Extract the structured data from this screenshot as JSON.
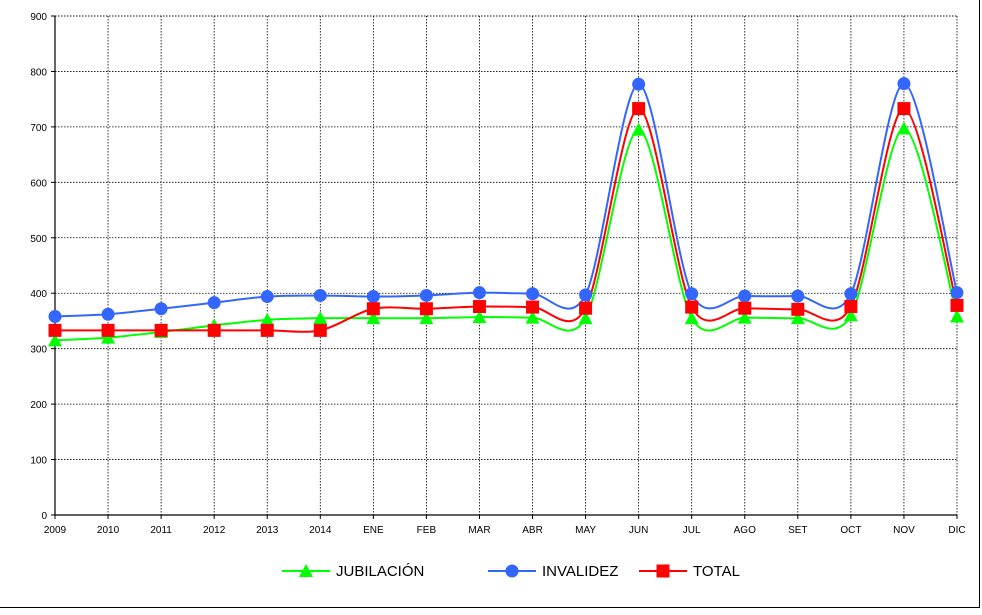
{
  "chart_data": {
    "type": "line",
    "title": "",
    "xlabel": "",
    "ylabel": "",
    "categories": [
      "2009",
      "2010",
      "2011",
      "2012",
      "2013",
      "2014",
      "ENE",
      "FEB",
      "MAR",
      "ABR",
      "MAY",
      "JUN",
      "JUL",
      "AGO",
      "SET",
      "OCT",
      "NOV",
      "DIC"
    ],
    "ylim": [
      0,
      900
    ],
    "yticks": [
      0,
      100,
      200,
      300,
      400,
      500,
      600,
      700,
      800,
      900
    ],
    "y_tick_labels": [
      "0",
      "100",
      "200",
      "300",
      "400",
      "500",
      "600",
      "700",
      "800",
      "900"
    ],
    "grid": true,
    "legend_position": "bottom",
    "smooth": true,
    "series": [
      {
        "name": "JUBILACIÓN",
        "color": "#00ff00",
        "marker": "triangle",
        "values": [
          315,
          320,
          330,
          342,
          352,
          355,
          355,
          355,
          357,
          356,
          355,
          695,
          355,
          356,
          355,
          360,
          697,
          358
        ]
      },
      {
        "name": "INVALIDEZ",
        "color": "#3366ff",
        "marker": "circle",
        "values": [
          358,
          362,
          372,
          383,
          394,
          396,
          394,
          396,
          401,
          399,
          397,
          777,
          399,
          395,
          395,
          399,
          778,
          401
        ]
      },
      {
        "name": "TOTAL",
        "color": "#ff0000",
        "marker": "square",
        "values": [
          333,
          333,
          333,
          333,
          333,
          333,
          372,
          372,
          376,
          375,
          373,
          733,
          375,
          373,
          371,
          376,
          733,
          378
        ]
      }
    ]
  }
}
